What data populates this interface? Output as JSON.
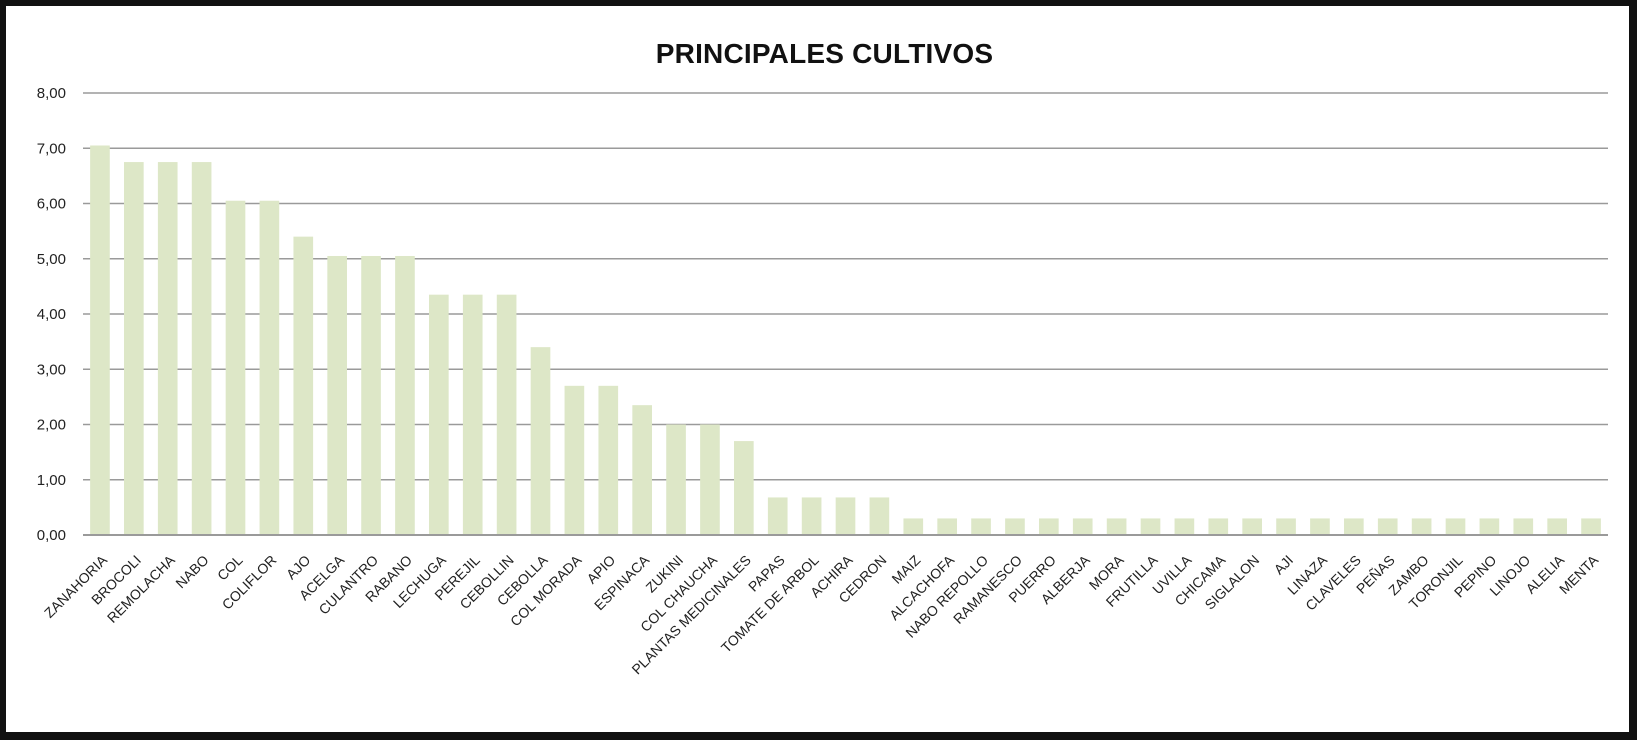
{
  "colors": {
    "bar": "#dde7c7",
    "grid": "#9a9a9a",
    "frame": "#111111"
  },
  "chart_data": {
    "type": "bar",
    "title": "PRINCIPALES CULTIVOS",
    "xlabel": "",
    "ylabel": "",
    "ylim": [
      0,
      8
    ],
    "yticks": [
      "0,00",
      "1,00",
      "2,00",
      "3,00",
      "4,00",
      "5,00",
      "6,00",
      "7,00",
      "8,00"
    ],
    "grid": true,
    "legend": "none",
    "categories": [
      "ZANAHORIA",
      "BROCOLI",
      "REMOLACHA",
      "NABO",
      "COL",
      "COLIFLOR",
      "AJO",
      "ACELGA",
      "CULANTRO",
      "RABANO",
      "LECHUGA",
      "PEREJIL",
      "CEBOLLIN",
      "CEBOLLA",
      "COL MORADA",
      "APIO",
      "ESPINACA",
      "ZUKINI",
      "COL CHAUCHA",
      "PLANTAS MEDICINALES",
      "PAPAS",
      "TOMATE DE ARBOL",
      "ACHIRA",
      "CEDRON",
      "MAIZ",
      "ALCACHOFA",
      "NABO REPOLLO",
      "RAMANESCO",
      "PUERRO",
      "ALBERJA",
      "MORA",
      "FRUTILLA",
      "UVILLA",
      "CHICAMA",
      "SIGLALON",
      "AJI",
      "LINAZA",
      "CLAVELES",
      "PEÑAS",
      "ZAMBO",
      "TORONJIL",
      "PEPINO",
      "LINOJO",
      "ALELIA",
      "MENTA"
    ],
    "values": [
      7.05,
      6.75,
      6.75,
      6.75,
      6.05,
      6.05,
      5.4,
      5.05,
      5.05,
      5.05,
      4.35,
      4.35,
      4.35,
      3.4,
      2.7,
      2.7,
      2.35,
      2.0,
      2.0,
      1.7,
      0.68,
      0.68,
      0.68,
      0.68,
      0.3,
      0.3,
      0.3,
      0.3,
      0.3,
      0.3,
      0.3,
      0.3,
      0.3,
      0.3,
      0.3,
      0.3,
      0.3,
      0.3,
      0.3,
      0.3,
      0.3,
      0.3,
      0.3,
      0.3,
      0.3
    ]
  }
}
